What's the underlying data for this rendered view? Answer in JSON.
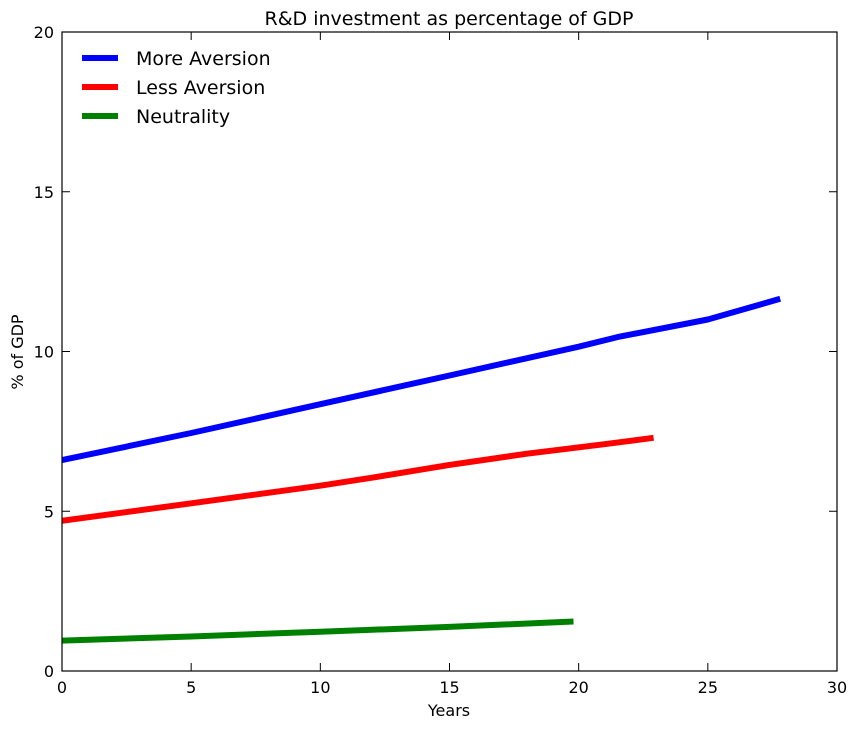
{
  "chart_data": {
    "type": "line",
    "title": "R&D investment as percentage of  GDP",
    "xlabel": "Years",
    "ylabel": "% of GDP",
    "xlim": [
      0,
      30
    ],
    "ylim": [
      0,
      20
    ],
    "xticks": [
      "0",
      "5",
      "10",
      "15",
      "20",
      "25",
      "30"
    ],
    "yticks": [
      "0",
      "5",
      "10",
      "15",
      "20"
    ],
    "grid": false,
    "legend_position": "top-left",
    "series": [
      {
        "name": "More Aversion",
        "color": "#0000ff",
        "x": [
          0,
          5,
          10,
          15,
          20,
          21.5,
          25,
          27.8
        ],
        "y": [
          6.6,
          7.45,
          8.35,
          9.25,
          10.15,
          10.45,
          11.0,
          11.65
        ]
      },
      {
        "name": "Less Aversion",
        "color": "#ff0000",
        "x": [
          0,
          5,
          10,
          12,
          15,
          18,
          21,
          22.9
        ],
        "y": [
          4.7,
          5.25,
          5.8,
          6.05,
          6.45,
          6.8,
          7.1,
          7.3
        ]
      },
      {
        "name": "Neutrality",
        "color": "#008000",
        "x": [
          0,
          5,
          10,
          15,
          19.8
        ],
        "y": [
          0.95,
          1.08,
          1.23,
          1.38,
          1.55
        ]
      }
    ]
  }
}
